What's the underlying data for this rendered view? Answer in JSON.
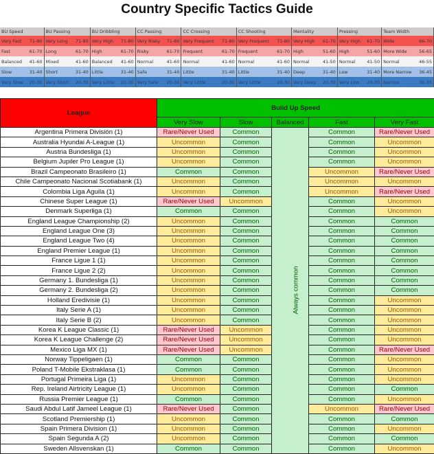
{
  "title": "Country Specific Tactics Guide",
  "legend": {
    "columns": [
      {
        "name": "BU Speed",
        "rows": [
          [
            "Very Fast",
            "71-80"
          ],
          [
            "Fast",
            "61-70"
          ],
          [
            "Balanced",
            "41-60"
          ],
          [
            "Slow",
            "31-40"
          ],
          [
            "Very Slow",
            "20-30"
          ]
        ]
      },
      {
        "name": "BU Passing",
        "rows": [
          [
            "Very Long",
            "71-80"
          ],
          [
            "Long",
            "61-70"
          ],
          [
            "Mixed",
            "41-60"
          ],
          [
            "Short",
            "31-40"
          ],
          [
            "Very Short",
            "20-30"
          ]
        ]
      },
      {
        "name": "BU Dribbling",
        "rows": [
          [
            "Very High",
            "71-80"
          ],
          [
            "High",
            "61-70"
          ],
          [
            "Balanced",
            "41-60"
          ],
          [
            "Little",
            "31-40"
          ],
          [
            "Very Little",
            "20-30"
          ]
        ]
      },
      {
        "name": "CC Passing",
        "rows": [
          [
            "Very Risky",
            "71-80"
          ],
          [
            "Risky",
            "61-70"
          ],
          [
            "Normal",
            "41-60"
          ],
          [
            "Safe",
            "31-40"
          ],
          [
            "Very Safe",
            "20-30"
          ]
        ]
      },
      {
        "name": "CC Crossing",
        "rows": [
          [
            "Very Frequent",
            "71-80"
          ],
          [
            "Frequent",
            "61-70"
          ],
          [
            "Normal",
            "41-60"
          ],
          [
            "Little",
            "31-40"
          ],
          [
            "Very Little",
            "20-30"
          ]
        ]
      },
      {
        "name": "CC Shooting",
        "rows": [
          [
            "Very Frequent",
            "71-80"
          ],
          [
            "Frequent",
            "61-70"
          ],
          [
            "Normal",
            "41-60"
          ],
          [
            "Little",
            "31-40"
          ],
          [
            "Very Little",
            "20-30"
          ]
        ]
      },
      {
        "name": "Mentality",
        "rows": [
          [
            "Very High",
            "61-70"
          ],
          [
            "High",
            "51-60"
          ],
          [
            "Normal",
            "41-50"
          ],
          [
            "Deep",
            "31-40"
          ],
          [
            "Very Deep",
            "20-30"
          ]
        ]
      },
      {
        "name": "Pressing",
        "rows": [
          [
            "Very High",
            "61-70"
          ],
          [
            "High",
            "51-60"
          ],
          [
            "Normal",
            "41-50"
          ],
          [
            "Low",
            "31-40"
          ],
          [
            "Very Low",
            "20-30"
          ]
        ]
      },
      {
        "name": "Team Width",
        "rows": [
          [
            "Wide",
            "66-70"
          ],
          [
            "More Wide",
            "56-65"
          ],
          [
            "Normal",
            "46-55"
          ],
          [
            "More Narrow",
            "36-45"
          ],
          [
            "Narrow",
            "30-35"
          ]
        ]
      }
    ],
    "colors": [
      "#f4524f",
      "#f7a5a4",
      "#f4f4f4",
      "#a2c1e8",
      "#3a7bc4"
    ]
  },
  "table": {
    "league_header": "League",
    "group_header": "Build Up Speed",
    "sub_headers": [
      "Very Slow",
      "Slow",
      "Balanced",
      "Fast",
      "Very Fast"
    ],
    "balanced_note": "Always common",
    "rows": [
      [
        "Argentina Primera División  (1)",
        "Rare/Never Used",
        "Common",
        "Common",
        "Rare/Never Used"
      ],
      [
        "Australia Hyundai A-League (1)",
        "Uncommon",
        "Common",
        "Common",
        "Uncommon"
      ],
      [
        "Austria Bundesliga (1)",
        "Uncommon",
        "Common",
        "Common",
        "Uncommon"
      ],
      [
        "Belgium Jupiler Pro League (1)",
        "Uncommon",
        "Common",
        "Common",
        "Uncommon"
      ],
      [
        "Brazil Campeonato Brasileiro (1)",
        "Common",
        "Common",
        "Uncommon",
        "Rare/Never Used"
      ],
      [
        "Chile Campeonato Nacional Scotiabank (1)",
        "Uncommon",
        "Common",
        "Uncommon",
        "Uncommon"
      ],
      [
        "Colombia Liga Aguila (1)",
        "Uncommon",
        "Common",
        "Uncommon",
        "Rare/Never Used"
      ],
      [
        "Chinese Super League (1)",
        "Rare/Never Used",
        "Uncommon",
        "Common",
        "Uncommon"
      ],
      [
        "Denmark Superliga (1)",
        "Common",
        "Common",
        "Common",
        "Uncommon"
      ],
      [
        "England League Championship (2)",
        "Uncommon",
        "Common",
        "Common",
        "Common"
      ],
      [
        "England League One (3)",
        "Uncommon",
        "Common",
        "Common",
        "Common"
      ],
      [
        "England League Two (4)",
        "Uncommon",
        "Common",
        "Common",
        "Common"
      ],
      [
        "England Premier League (1)",
        "Uncommon",
        "Common",
        "Common",
        "Common"
      ],
      [
        "France Ligue 1 (1)",
        "Uncommon",
        "Common",
        "Common",
        "Common"
      ],
      [
        "France Ligue 2 (2)",
        "Uncommon",
        "Common",
        "Common",
        "Common"
      ],
      [
        "Germany 1. Bundesliga (1)",
        "Uncommon",
        "Common",
        "Common",
        "Common"
      ],
      [
        "Germany 2. Bundesliga  (2)",
        "Uncommon",
        "Common",
        "Common",
        "Common"
      ],
      [
        "Holland Eredivisie (1)",
        "Uncommon",
        "Common",
        "Common",
        "Uncommon"
      ],
      [
        "Italy Serie A (1)",
        "Uncommon",
        "Common",
        "Common",
        "Uncommon"
      ],
      [
        "Italy Serie B (2)",
        "Uncommon",
        "Common",
        "Common",
        "Uncommon"
      ],
      [
        "Korea K League Classic (1)",
        "Rare/Never Used",
        "Uncommon",
        "Common",
        "Uncommon"
      ],
      [
        "Korea K League Challenge (2)",
        "Rare/Never Used",
        "Uncommon",
        "Common",
        "Uncommon"
      ],
      [
        "Mexico Liga MX (1)",
        "Rare/Never Used",
        "Uncommon",
        "Common",
        "Rare/Never Used"
      ],
      [
        "Norway Tippeligaen (1)",
        "Common",
        "Common",
        "Common",
        "Uncommon"
      ],
      [
        "Poland T-Mobile Ekstraklasa (1)",
        "Common",
        "Common",
        "Common",
        "Uncommon"
      ],
      [
        "Portugal Primeira Liga (1)",
        "Uncommon",
        "Common",
        "Common",
        "Uncommon"
      ],
      [
        "Rep. Ireland Airtricity League (1)",
        "Uncommon",
        "Common",
        "Common",
        "Common"
      ],
      [
        "Russia Premier League (1)",
        "Common",
        "Common",
        "Common",
        "Uncommon"
      ],
      [
        "Saudi Abdul Latif Jameel League (1)",
        "Rare/Never Used",
        "Common",
        "Uncommon",
        "Rare/Never Used"
      ],
      [
        "Scotland Premiership (1)",
        "Uncommon",
        "Common",
        "Common",
        "Common"
      ],
      [
        "Spain Primera Division (1)",
        "Uncommon",
        "Common",
        "Common",
        "Uncommon"
      ],
      [
        "Spain Segunda A (2)",
        "Uncommon",
        "Common",
        "Common",
        "Common"
      ],
      [
        "Sweden Allsvenskan (1)",
        "Common",
        "Common",
        "Common",
        "Uncommon"
      ]
    ]
  }
}
